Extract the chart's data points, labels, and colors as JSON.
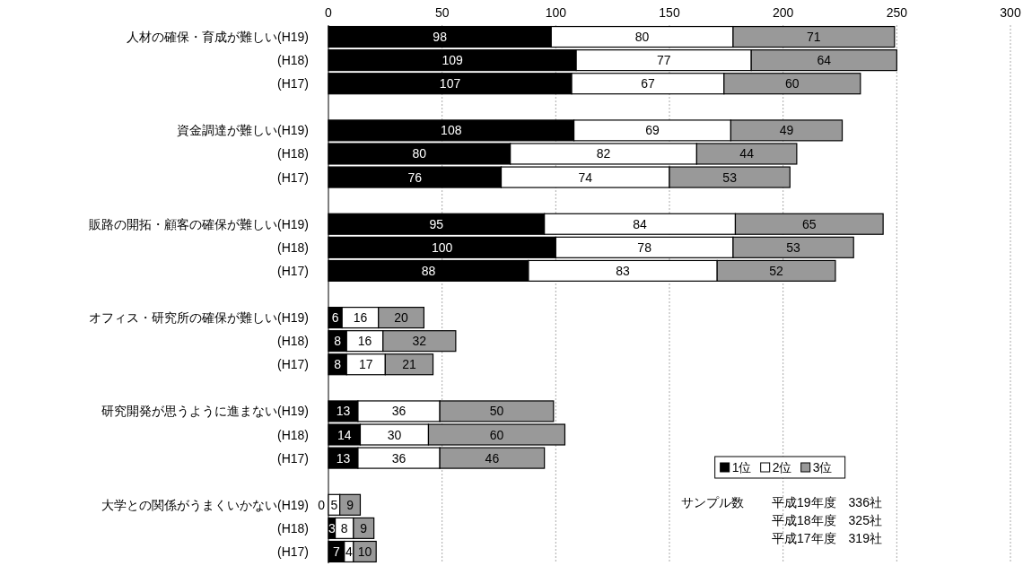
{
  "chart_data": {
    "type": "bar",
    "orientation": "horizontal",
    "stacked": true,
    "categories": [
      "人材の確保・育成が難しい(H19)",
      "(H18)",
      "(H17)",
      null,
      "資金調達が難しい(H19)",
      "(H18)",
      "(H17)",
      null,
      "販路の開拓・顧客の確保が難しい(H19)",
      "(H18)",
      "(H17)",
      null,
      "オフィス・研究所の確保が難しい(H19)",
      "(H18)",
      "(H17)",
      null,
      "研究開発が思うように進まない(H19)",
      "(H18)",
      "(H17)",
      null,
      "大学との関係がうまくいかない(H19)",
      "(H18)",
      "(H17)"
    ],
    "series": [
      {
        "name": "1位",
        "color": "#000000",
        "values": [
          98,
          109,
          107,
          null,
          108,
          80,
          76,
          null,
          95,
          100,
          88,
          null,
          6,
          8,
          8,
          null,
          13,
          14,
          13,
          null,
          0,
          3,
          7
        ]
      },
      {
        "name": "2位",
        "color": "#ffffff",
        "values": [
          80,
          77,
          67,
          null,
          69,
          82,
          74,
          null,
          84,
          78,
          83,
          null,
          16,
          16,
          17,
          null,
          36,
          30,
          36,
          null,
          5,
          8,
          4
        ]
      },
      {
        "name": "3位",
        "color": "#999999",
        "values": [
          71,
          64,
          60,
          null,
          49,
          44,
          53,
          null,
          65,
          53,
          52,
          null,
          20,
          32,
          21,
          null,
          50,
          60,
          46,
          null,
          9,
          9,
          10
        ]
      }
    ],
    "xlim": [
      0,
      300
    ],
    "xticks": [
      0,
      50,
      100,
      150,
      200,
      250,
      300
    ],
    "grid": "x",
    "legend": "bottom right",
    "data_labels": true,
    "annotations": [
      "サンプル数",
      "平成19年度　336社",
      "平成18年度　325社",
      "平成17年度　319社"
    ]
  }
}
